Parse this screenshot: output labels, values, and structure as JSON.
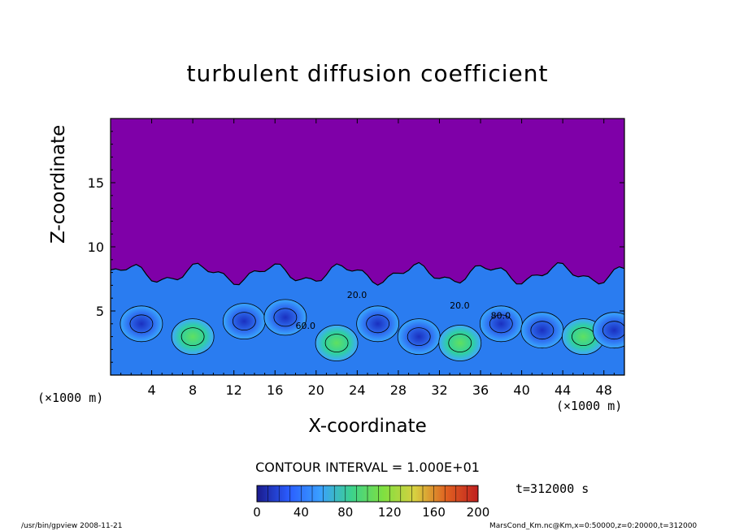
{
  "chart_data": {
    "type": "heatmap",
    "title": "turbulent diffusion coefficient",
    "xlabel": "X-coordinate",
    "ylabel": "Z-coordinate",
    "x_unit": "(×1000 m)",
    "xlim": [
      0,
      50
    ],
    "ylim": [
      0,
      20
    ],
    "x_ticks": [
      4,
      8,
      12,
      16,
      20,
      24,
      28,
      32,
      36,
      40,
      44,
      48
    ],
    "y_ticks": [
      5,
      10,
      15
    ],
    "turbulent_layer_top_z": 8.5,
    "contour_interval_text": "CONTOUR INTERVAL = 1.000E+01",
    "contour_labels": [
      "20.0",
      "20.0",
      "80.0",
      "60.0"
    ],
    "colorbar": {
      "min": 0,
      "max": 200,
      "ticks": [
        0,
        40,
        80,
        120,
        160,
        200
      ],
      "colors": [
        "#1a1a8c",
        "#2a5cff",
        "#3aa0ff",
        "#3cd28c",
        "#7fe040",
        "#d8d040",
        "#e06020",
        "#c02020"
      ]
    },
    "background_color": "#7f00a8",
    "time_label": "t=312000 s",
    "footer_left": "/usr/bin/gpview  2008-11-21",
    "footer_right": "MarsCond_Km.nc@Km,x=0:50000,z=0:20000,t=312000"
  }
}
